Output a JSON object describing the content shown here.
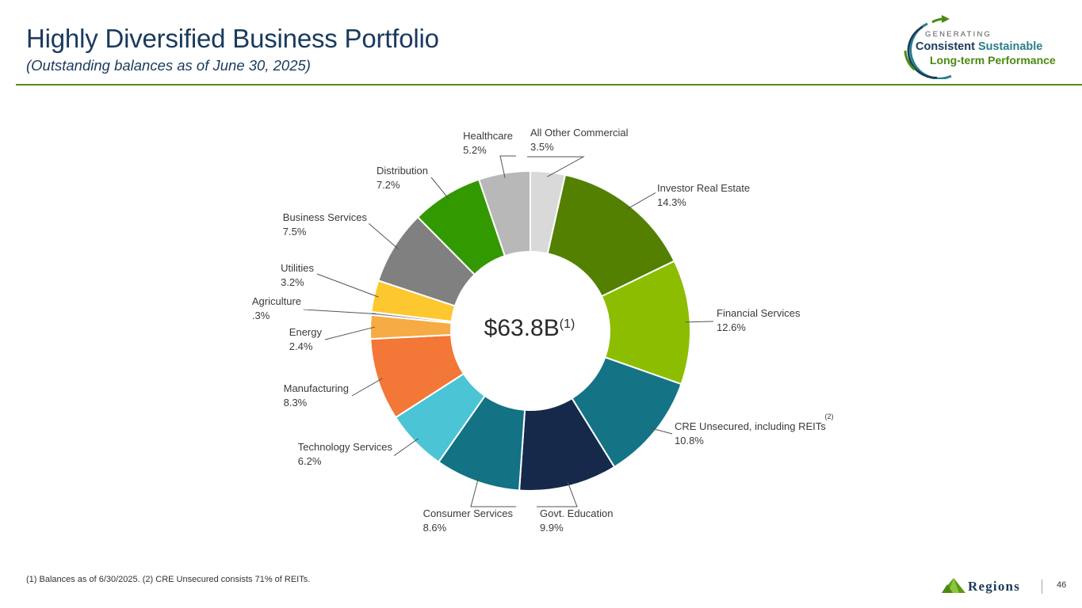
{
  "header": {
    "title": "Highly Diversified Business Portfolio",
    "subtitle": "(Outstanding balances as of June 30, 2025)"
  },
  "brand": {
    "generating": "GENERATING",
    "consistent": "Consistent",
    "sustainable": "Sustainable",
    "line2": "Long-term Performance",
    "icon": "circular-arrow-icon"
  },
  "chart_data": {
    "type": "pie",
    "donut": true,
    "center_label": "$63.8B",
    "center_superscript": "(1)",
    "slices": [
      {
        "name": "All Other Commercial",
        "value": 3.5,
        "label": "3.5%",
        "color": "#d9d9d9"
      },
      {
        "name": "Investor Real Estate",
        "value": 14.3,
        "label": "14.3%",
        "color": "#538000"
      },
      {
        "name": "Financial Services",
        "value": 12.6,
        "label": "12.6%",
        "color": "#8cbd00"
      },
      {
        "name": "CRE Unsecured, including REITs",
        "superscript": "(2)",
        "value": 10.8,
        "label": "10.8%",
        "color": "#147486"
      },
      {
        "name": "Govt. Education",
        "value": 9.9,
        "label": "9.9%",
        "color": "#16294b"
      },
      {
        "name": "Consumer Services",
        "value": 8.6,
        "label": "8.6%",
        "color": "#137283"
      },
      {
        "name": "Technology Services",
        "value": 6.2,
        "label": "6.2%",
        "color": "#4bc4d5"
      },
      {
        "name": "Manufacturing",
        "value": 8.3,
        "label": "8.3%",
        "color": "#f37736"
      },
      {
        "name": "Energy",
        "value": 2.4,
        "label": "2.4%",
        "color": "#f7ab44"
      },
      {
        "name": "Agriculture",
        "value": 0.3,
        "label": ".3%",
        "color": "#8a8f96"
      },
      {
        "name": "Utilities",
        "value": 3.2,
        "label": "3.2%",
        "color": "#fdc82f"
      },
      {
        "name": "Business Services",
        "value": 7.5,
        "label": "7.5%",
        "color": "#808080"
      },
      {
        "name": "Distribution",
        "value": 7.2,
        "label": "7.2%",
        "color": "#339900"
      },
      {
        "name": "Healthcare",
        "value": 5.2,
        "label": "5.2%",
        "color": "#b8b8b8"
      }
    ]
  },
  "footer": {
    "footnote": "(1) Balances as of 6/30/2025. (2) CRE Unsecured consists 71% of REITs.",
    "logo_text": "Regions",
    "logo_icon": "pyramid-logo-icon",
    "page_number": "46"
  }
}
